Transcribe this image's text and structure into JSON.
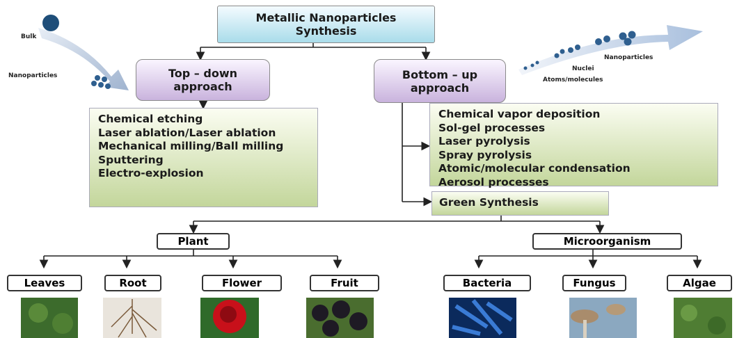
{
  "title": "Metallic Nanoparticles Synthesis",
  "illustration_left": {
    "bulk": "Bulk",
    "nanoparticles": "Nanoparticles"
  },
  "illustration_right": {
    "nanoparticles": "Nanoparticles",
    "nuclei": "Nuclei",
    "atoms": "Atoms/molecules"
  },
  "top_down": {
    "label": "Top – down approach",
    "methods": [
      "Chemical etching",
      "Laser ablation/Laser ablation",
      "Mechanical milling/Ball milling",
      "Sputtering",
      "Electro-explosion"
    ]
  },
  "bottom_up": {
    "label": "Bottom – up approach",
    "methods": [
      "Chemical vapor deposition",
      "Sol-gel processes",
      "Laser pyrolysis",
      "Spray pyrolysis",
      "Atomic/molecular  condensation",
      "Aerosol processes"
    ]
  },
  "green_synthesis": "Green Synthesis",
  "plant": {
    "label": "Plant",
    "parts": [
      "Leaves",
      "Root",
      "Flower",
      "Fruit"
    ]
  },
  "microorganism": {
    "label": "Microorganism",
    "types": [
      "Bacteria",
      "Fungus",
      "Algae"
    ]
  }
}
